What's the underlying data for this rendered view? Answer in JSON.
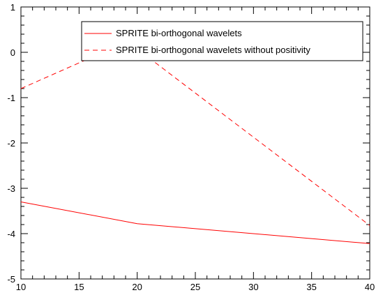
{
  "chart_data": {
    "type": "line",
    "title": "",
    "xlabel": "",
    "ylabel": "",
    "xlim": [
      10,
      40
    ],
    "ylim": [
      -5,
      1
    ],
    "grid": false,
    "legend": "top-right",
    "series": [
      {
        "name": "SPRITE bi-orthogonal wavelets",
        "x": [
          10,
          20,
          40
        ],
        "y": [
          -3.3,
          -3.78,
          -4.22
        ],
        "color": "#ff0000",
        "style": "solid"
      },
      {
        "name": "SPRITE bi-orthogonal wavelets without positivity",
        "x": [
          10,
          16,
          21,
          40
        ],
        "y": [
          -0.8,
          -0.12,
          -0.12,
          -3.82
        ],
        "color": "#ff0000",
        "style": "dashed"
      }
    ],
    "xticks": [
      10,
      15,
      20,
      25,
      30,
      35,
      40
    ],
    "yticks": [
      1,
      0,
      -1,
      -2,
      -3,
      -4,
      -5
    ]
  }
}
